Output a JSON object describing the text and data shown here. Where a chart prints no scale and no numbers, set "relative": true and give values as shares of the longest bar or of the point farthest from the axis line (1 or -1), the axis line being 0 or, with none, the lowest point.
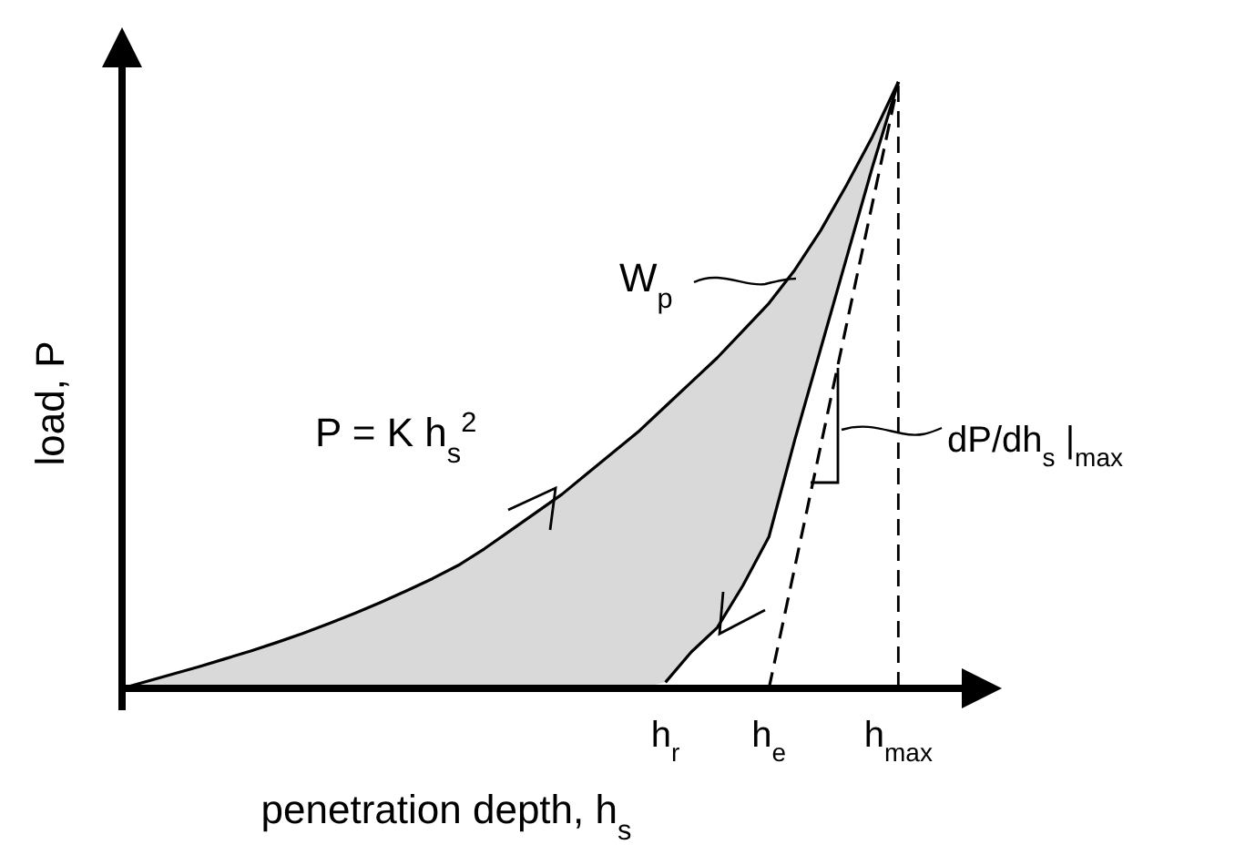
{
  "chart_data": {
    "type": "line",
    "relative": true,
    "xlabel": "penetration depth, h$_{s}$",
    "ylabel": "load, P",
    "categories": [
      null,
      null,
      null,
      null,
      null,
      null,
      null,
      null,
      null,
      null,
      null,
      null,
      null,
      null,
      null,
      null,
      null,
      null,
      null,
      null,
      null,
      "h$_{r}$",
      null,
      null,
      null,
      "h$_{e}$",
      null,
      null,
      null,
      null,
      "h$_{max}$",
      null,
      null,
      null,
      null
    ],
    "series": [
      {
        "color": "#000000",
        "values": [
          0,
          0.012,
          0.024,
          0.036,
          0.049,
          0.062,
          0.076,
          0.091,
          0.107,
          0.124,
          0.142,
          0.161,
          0.181,
          0.203,
          0.23,
          0.26,
          0.29,
          0.32,
          0.355,
          0.39,
          0.425,
          0.465,
          0.505,
          0.545,
          0.59,
          0.635,
          0.69,
          0.755,
          0.83,
          0.91,
          1,
          null,
          null,
          null,
          null
        ],
        "lower": [
          0,
          0,
          0,
          0,
          0,
          0,
          0,
          0,
          0,
          0,
          0,
          0,
          0,
          0,
          0,
          0,
          0,
          0,
          0,
          0,
          0,
          0.01,
          0.06,
          0.1,
          0.17,
          0.25,
          0.41,
          0.56,
          0.71,
          0.86,
          1,
          null,
          null,
          null,
          null
        ],
        "upper": [
          0,
          0.012,
          0.024,
          0.036,
          0.049,
          0.062,
          0.076,
          0.091,
          0.107,
          0.124,
          0.142,
          0.161,
          0.181,
          0.203,
          0.23,
          0.26,
          0.29,
          0.32,
          0.355,
          0.39,
          0.425,
          0.465,
          0.505,
          0.545,
          0.59,
          0.635,
          0.69,
          0.755,
          0.83,
          0.91,
          1,
          null,
          null,
          null,
          null
        ]
      },
      {
        "color": "#000000",
        "values": [
          null,
          null,
          null,
          null,
          null,
          null,
          null,
          null,
          null,
          null,
          null,
          null,
          null,
          null,
          null,
          null,
          null,
          null,
          null,
          null,
          null,
          0.01,
          0.06,
          0.1,
          0.17,
          0.25,
          0.41,
          0.56,
          0.71,
          0.86,
          1,
          null,
          null,
          null,
          null
        ]
      },
      {
        "color": "#000000",
        "line_style": "dashed",
        "values": [
          null,
          null,
          null,
          null,
          null,
          null,
          null,
          null,
          null,
          null,
          null,
          null,
          null,
          null,
          null,
          null,
          null,
          null,
          null,
          null,
          null,
          null,
          null,
          null,
          null,
          0,
          0.2,
          0.4,
          0.6,
          0.8,
          1,
          null,
          null,
          null,
          null
        ]
      }
    ],
    "ref_lines": [
      {
        "axis": "x",
        "value": "h$_{max}$",
        "line_style": "dashed",
        "color": "#000000"
      }
    ],
    "annotations": [
      "W$_{p}$",
      "P = K h$_{s}$$^{2}$",
      "dP/dh$_{s}$ |$_{max}$"
    ]
  }
}
